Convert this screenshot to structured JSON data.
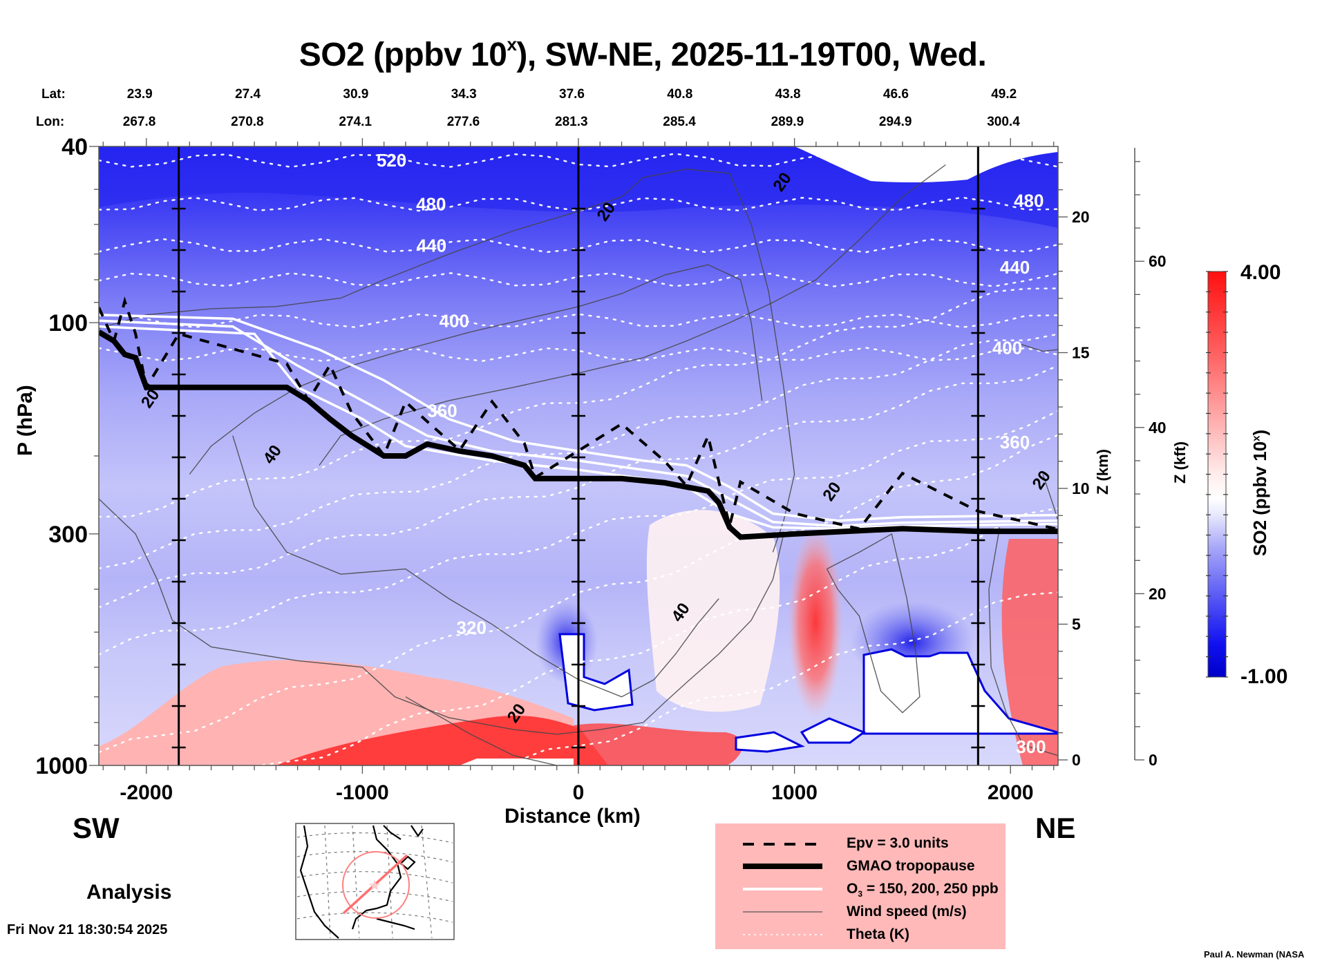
{
  "title": {
    "prefix": "SO2 (ppbv 10",
    "superscript": "x",
    "suffix": "), SW-NE, 2025-11-19T00, Wed."
  },
  "latlon": {
    "lat_label": "Lat:",
    "lon_label": "Lon:",
    "distances_km": [
      -2000,
      -1500,
      -1000,
      -500,
      0,
      500,
      1000,
      1500,
      2000
    ],
    "lat": [
      "23.9",
      "27.4",
      "30.9",
      "34.3",
      "37.6",
      "40.8",
      "43.8",
      "46.6",
      "49.2"
    ],
    "lon": [
      "267.8",
      "270.8",
      "274.1",
      "277.6",
      "281.3",
      "285.4",
      "289.9",
      "294.9",
      "300.4"
    ]
  },
  "direction": {
    "left": "SW",
    "right": "NE"
  },
  "run_type": "Analysis",
  "timestamp": "Fri Nov 21 18:30:54 2025",
  "credit": "Paul A. Newman (NASA",
  "legend": {
    "items": [
      {
        "key": "epv",
        "label": "Epv = 3.0 units",
        "style": "dashed-black"
      },
      {
        "key": "tropopause",
        "label": "GMAO tropopause",
        "style": "thick-black"
      },
      {
        "key": "o3",
        "label_pre": "O",
        "label_sub": "3",
        "label_post": " = 150, 200, 250 ppb",
        "style": "white"
      },
      {
        "key": "wind",
        "label": "Wind speed (m/s)",
        "style": "thin-gray"
      },
      {
        "key": "theta",
        "label": "Theta (K)",
        "style": "dotted-white"
      }
    ],
    "background": "#ffb9b9"
  },
  "chart_data": {
    "type": "heatmap",
    "title": "SO2 (ppbv 10^x), SW-NE, 2025-11-19T00, Wed.",
    "xlabel": "Distance (km)",
    "ylabel": "P (hPa)",
    "ylabel_right": "Z (km)",
    "ylabel_right2": "Z (kft)",
    "xlim": [
      -2220,
      2220
    ],
    "ylim": [
      1000,
      40
    ],
    "yscale": "log",
    "x_ticks": [
      -2000,
      -1000,
      0,
      1000,
      2000
    ],
    "x_tick_labels": [
      "-2000",
      "-1000",
      "0",
      "1000",
      "2000"
    ],
    "y_ticks": [
      40,
      100,
      300,
      1000
    ],
    "y_tick_labels": [
      "40",
      "100",
      "300",
      "1000"
    ],
    "z_km_ticks": [
      0,
      5,
      10,
      15,
      20
    ],
    "z_kft_ticks": [
      0,
      20,
      40,
      60
    ],
    "vertical_markers_km": [
      -1850,
      0,
      1850
    ],
    "colorbar": {
      "label": "SO2 (ppbv 10^x)",
      "min": -1.0,
      "max": 4.0,
      "min_label": "-1.00",
      "max_label": "4.00",
      "levels": 20,
      "low_color": "#0000cc",
      "mid_color": "#ffffff",
      "high_color": "#ff1010"
    },
    "theta_labels": [
      {
        "value": "520",
        "x_km": -865,
        "p": 43
      },
      {
        "value": "480",
        "x_km": -682,
        "p": 54
      },
      {
        "value": "440",
        "x_km": -680,
        "p": 67
      },
      {
        "value": "400",
        "x_km": -575,
        "p": 99
      },
      {
        "value": "360",
        "x_km": -630,
        "p": 158
      },
      {
        "value": "320",
        "x_km": -495,
        "p": 488
      },
      {
        "value": "480",
        "x_km": 2085,
        "p": 53
      },
      {
        "value": "440",
        "x_km": 2020,
        "p": 75
      },
      {
        "value": "400",
        "x_km": 1985,
        "p": 114
      },
      {
        "value": "360",
        "x_km": 2020,
        "p": 186
      },
      {
        "value": "300",
        "x_km": 2095,
        "p": 908
      }
    ],
    "wind_labels": [
      {
        "value": "20",
        "x_km": -1985,
        "p": 148
      },
      {
        "value": "40",
        "x_km": -1420,
        "p": 198
      },
      {
        "value": "20",
        "x_km": 125,
        "p": 56
      },
      {
        "value": "20",
        "x_km": 940,
        "p": 48
      },
      {
        "value": "40",
        "x_km": 470,
        "p": 450
      },
      {
        "value": "20",
        "x_km": -290,
        "p": 760
      },
      {
        "value": "20",
        "x_km": 1170,
        "p": 240
      },
      {
        "value": "20",
        "x_km": 2140,
        "p": 226
      }
    ],
    "tropopause_hpa": [
      {
        "x": -2220,
        "p": 105
      },
      {
        "x": -2150,
        "p": 110
      },
      {
        "x": -2100,
        "p": 118
      },
      {
        "x": -2050,
        "p": 120
      },
      {
        "x": -2000,
        "p": 140
      },
      {
        "x": -1850,
        "p": 140
      },
      {
        "x": -1350,
        "p": 140
      },
      {
        "x": -1250,
        "p": 150
      },
      {
        "x": -1150,
        "p": 165
      },
      {
        "x": -1050,
        "p": 180
      },
      {
        "x": -900,
        "p": 200
      },
      {
        "x": -800,
        "p": 200
      },
      {
        "x": -700,
        "p": 188
      },
      {
        "x": -550,
        "p": 195
      },
      {
        "x": -400,
        "p": 200
      },
      {
        "x": -250,
        "p": 210
      },
      {
        "x": -200,
        "p": 225
      },
      {
        "x": 200,
        "p": 225
      },
      {
        "x": 400,
        "p": 230
      },
      {
        "x": 500,
        "p": 235
      },
      {
        "x": 600,
        "p": 240
      },
      {
        "x": 650,
        "p": 255
      },
      {
        "x": 700,
        "p": 290
      },
      {
        "x": 750,
        "p": 305
      },
      {
        "x": 1000,
        "p": 300
      },
      {
        "x": 1300,
        "p": 295
      },
      {
        "x": 1500,
        "p": 292
      },
      {
        "x": 1850,
        "p": 296
      },
      {
        "x": 2220,
        "p": 296
      }
    ],
    "o3_contours_hpa": [
      [
        {
          "x": -2220,
          "p": 96
        },
        {
          "x": -1600,
          "p": 98
        },
        {
          "x": -1200,
          "p": 115
        },
        {
          "x": -900,
          "p": 135
        },
        {
          "x": -600,
          "p": 165
        },
        {
          "x": -300,
          "p": 185
        },
        {
          "x": 0,
          "p": 195
        },
        {
          "x": 300,
          "p": 205
        },
        {
          "x": 500,
          "p": 210
        },
        {
          "x": 700,
          "p": 235
        },
        {
          "x": 900,
          "p": 270
        },
        {
          "x": 1200,
          "p": 280
        },
        {
          "x": 1500,
          "p": 275
        },
        {
          "x": 2220,
          "p": 272
        }
      ],
      [
        {
          "x": -2220,
          "p": 99
        },
        {
          "x": -1600,
          "p": 102
        },
        {
          "x": -1300,
          "p": 125
        },
        {
          "x": -1000,
          "p": 150
        },
        {
          "x": -700,
          "p": 180
        },
        {
          "x": -400,
          "p": 195
        },
        {
          "x": 0,
          "p": 205
        },
        {
          "x": 300,
          "p": 215
        },
        {
          "x": 500,
          "p": 222
        },
        {
          "x": 700,
          "p": 250
        },
        {
          "x": 900,
          "p": 282
        },
        {
          "x": 1200,
          "p": 288
        },
        {
          "x": 1500,
          "p": 283
        },
        {
          "x": 2220,
          "p": 280
        }
      ],
      [
        {
          "x": -2220,
          "p": 102
        },
        {
          "x": -1500,
          "p": 106
        },
        {
          "x": -1300,
          "p": 140
        },
        {
          "x": -1000,
          "p": 165
        },
        {
          "x": -800,
          "p": 190
        },
        {
          "x": -400,
          "p": 205
        },
        {
          "x": 0,
          "p": 215
        },
        {
          "x": 300,
          "p": 225
        },
        {
          "x": 500,
          "p": 235
        },
        {
          "x": 700,
          "p": 270
        },
        {
          "x": 900,
          "p": 290
        },
        {
          "x": 1200,
          "p": 292
        },
        {
          "x": 1500,
          "p": 288
        },
        {
          "x": 2220,
          "p": 285
        }
      ]
    ]
  }
}
